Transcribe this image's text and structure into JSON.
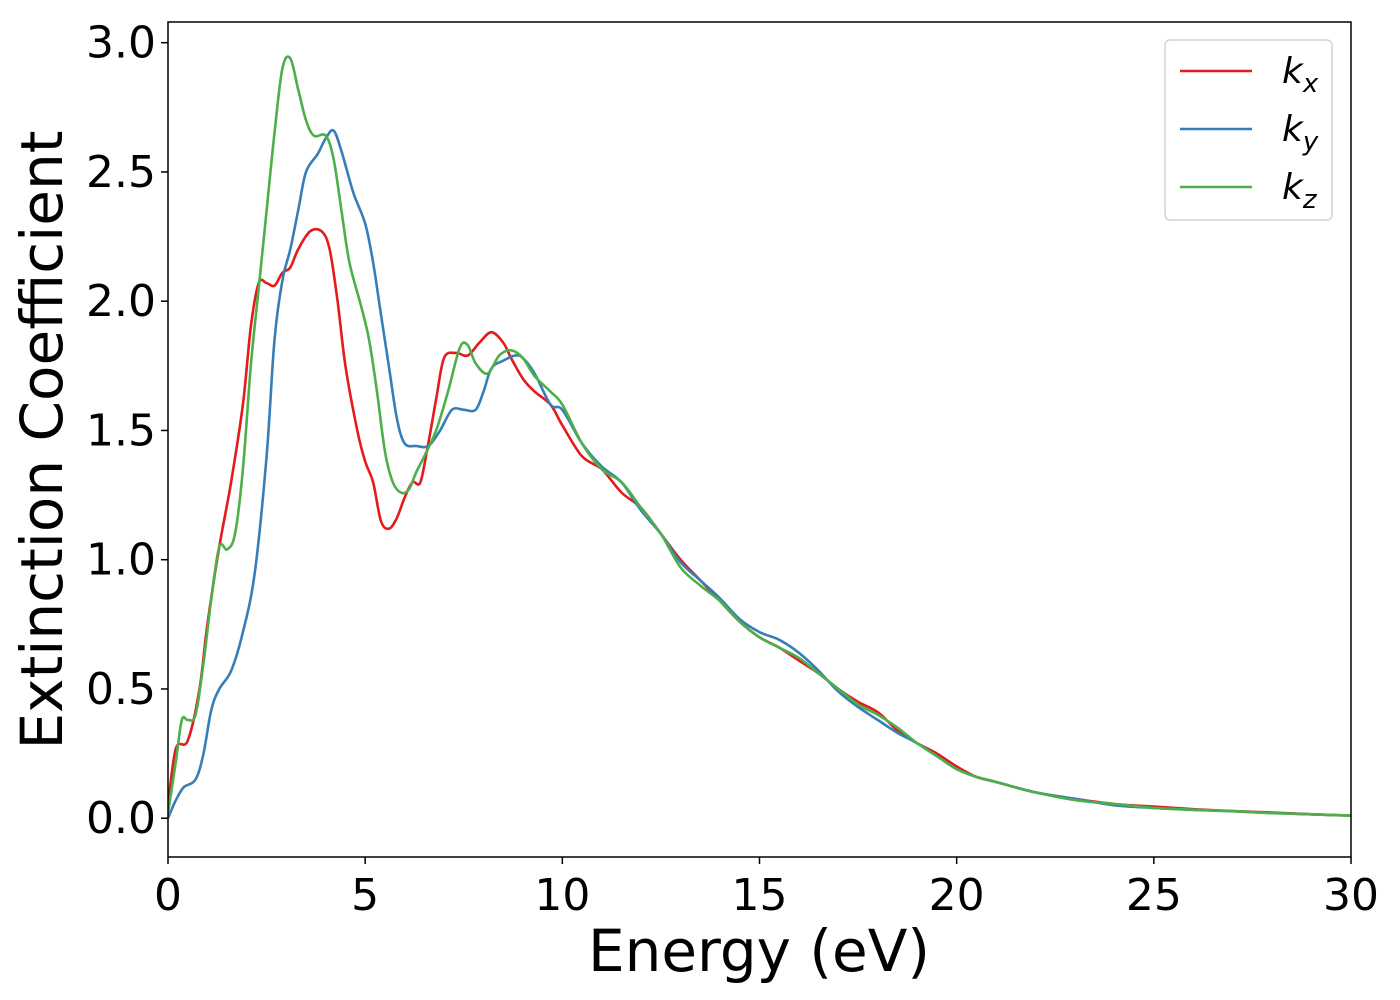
{
  "chart_data": {
    "type": "line",
    "title": "",
    "xlabel": "Energy (eV)",
    "ylabel": "Extinction Coefficient",
    "xlim": [
      0,
      30
    ],
    "ylim": [
      -0.15,
      3.08
    ],
    "xticks": [
      0,
      5,
      10,
      15,
      20,
      25,
      30
    ],
    "xtick_labels": [
      "0",
      "5",
      "10",
      "15",
      "20",
      "25",
      "30"
    ],
    "yticks": [
      0.0,
      0.5,
      1.0,
      1.5,
      2.0,
      2.5,
      3.0
    ],
    "ytick_labels": [
      "0.0",
      "0.5",
      "1.0",
      "1.5",
      "2.0",
      "2.5",
      "3.0"
    ],
    "grid": false,
    "legend_position": "top-right",
    "series": [
      {
        "name": "k_x",
        "legend_base": "k",
        "legend_sub": "x",
        "color": "#e41a1c",
        "x": [
          0,
          0.2,
          0.5,
          0.8,
          1.0,
          1.3,
          1.6,
          1.9,
          2.1,
          2.3,
          2.5,
          2.7,
          2.9,
          3.1,
          3.3,
          3.6,
          3.9,
          4.1,
          4.3,
          4.5,
          4.8,
          5.0,
          5.2,
          5.4,
          5.6,
          5.8,
          6.0,
          6.2,
          6.4,
          6.6,
          6.8,
          7.0,
          7.3,
          7.6,
          7.9,
          8.2,
          8.5,
          8.7,
          9.0,
          9.3,
          9.7,
          10.0,
          10.5,
          11.0,
          11.5,
          12.0,
          12.5,
          13.0,
          13.5,
          14.0,
          14.5,
          15.0,
          15.5,
          16.0,
          16.5,
          17.0,
          17.5,
          18.0,
          18.5,
          19.0,
          19.5,
          20.0,
          20.5,
          21.0,
          22.0,
          23.0,
          24.0,
          25.0,
          26.0,
          27.0,
          28.0,
          29.0,
          30.0
        ],
        "y": [
          0.05,
          0.27,
          0.3,
          0.5,
          0.75,
          1.05,
          1.3,
          1.6,
          1.9,
          2.07,
          2.07,
          2.06,
          2.11,
          2.13,
          2.2,
          2.27,
          2.27,
          2.2,
          2.0,
          1.75,
          1.5,
          1.38,
          1.3,
          1.15,
          1.12,
          1.16,
          1.24,
          1.3,
          1.3,
          1.45,
          1.62,
          1.78,
          1.8,
          1.79,
          1.84,
          1.88,
          1.84,
          1.78,
          1.7,
          1.65,
          1.6,
          1.52,
          1.4,
          1.35,
          1.26,
          1.2,
          1.1,
          1.0,
          0.92,
          0.84,
          0.76,
          0.7,
          0.66,
          0.61,
          0.56,
          0.5,
          0.45,
          0.41,
          0.34,
          0.29,
          0.25,
          0.2,
          0.16,
          0.14,
          0.1,
          0.075,
          0.055,
          0.045,
          0.035,
          0.028,
          0.022,
          0.015,
          0.01
        ]
      },
      {
        "name": "k_y",
        "legend_base": "k",
        "legend_sub": "y",
        "color": "#377eb8",
        "x": [
          0,
          0.2,
          0.4,
          0.7,
          0.9,
          1.1,
          1.3,
          1.6,
          1.9,
          2.2,
          2.5,
          2.7,
          2.9,
          3.1,
          3.3,
          3.5,
          3.8,
          4.0,
          4.2,
          4.4,
          4.7,
          5.0,
          5.2,
          5.4,
          5.6,
          5.8,
          6.0,
          6.3,
          6.6,
          6.9,
          7.2,
          7.5,
          7.8,
          8.0,
          8.2,
          8.5,
          8.8,
          9.0,
          9.3,
          9.7,
          10.0,
          10.5,
          11.0,
          11.5,
          12.0,
          12.5,
          13.0,
          13.5,
          14.0,
          14.5,
          15.0,
          15.5,
          16.0,
          16.5,
          17.0,
          17.5,
          18.0,
          18.5,
          19.0,
          19.5,
          20.0,
          20.5,
          21.0,
          22.0,
          23.0,
          24.0,
          25.0,
          26.0,
          27.0,
          28.0,
          29.0,
          30.0
        ],
        "y": [
          0.0,
          0.07,
          0.12,
          0.15,
          0.25,
          0.42,
          0.5,
          0.57,
          0.72,
          0.95,
          1.4,
          1.85,
          2.08,
          2.2,
          2.35,
          2.5,
          2.57,
          2.63,
          2.66,
          2.58,
          2.42,
          2.3,
          2.15,
          1.95,
          1.75,
          1.55,
          1.45,
          1.44,
          1.44,
          1.5,
          1.58,
          1.58,
          1.58,
          1.65,
          1.74,
          1.77,
          1.79,
          1.78,
          1.72,
          1.6,
          1.58,
          1.45,
          1.36,
          1.3,
          1.19,
          1.1,
          0.99,
          0.92,
          0.85,
          0.77,
          0.72,
          0.69,
          0.64,
          0.57,
          0.49,
          0.43,
          0.38,
          0.33,
          0.29,
          0.24,
          0.19,
          0.16,
          0.14,
          0.1,
          0.075,
          0.05,
          0.04,
          0.032,
          0.027,
          0.02,
          0.015,
          0.01
        ]
      },
      {
        "name": "k_z",
        "legend_base": "k",
        "legend_sub": "z",
        "color": "#4daf4a",
        "x": [
          0,
          0.2,
          0.35,
          0.5,
          0.7,
          0.9,
          1.1,
          1.3,
          1.5,
          1.7,
          1.9,
          2.1,
          2.3,
          2.5,
          2.7,
          2.9,
          3.1,
          3.3,
          3.5,
          3.7,
          4.0,
          4.2,
          4.4,
          4.6,
          4.9,
          5.1,
          5.3,
          5.5,
          5.7,
          5.9,
          6.1,
          6.3,
          6.5,
          6.8,
          7.1,
          7.4,
          7.6,
          7.8,
          8.1,
          8.4,
          8.7,
          9.0,
          9.3,
          9.7,
          10.0,
          10.5,
          11.0,
          11.5,
          12.0,
          12.5,
          13.0,
          13.5,
          14.0,
          14.5,
          15.0,
          15.5,
          16.0,
          16.5,
          17.0,
          17.5,
          18.0,
          18.5,
          19.0,
          19.5,
          20.0,
          20.5,
          21.0,
          22.0,
          23.0,
          24.0,
          25.0,
          26.0,
          27.0,
          28.0,
          29.0,
          30.0
        ],
        "y": [
          0.02,
          0.22,
          0.38,
          0.38,
          0.4,
          0.6,
          0.85,
          1.05,
          1.04,
          1.1,
          1.35,
          1.75,
          2.05,
          2.35,
          2.65,
          2.9,
          2.94,
          2.82,
          2.7,
          2.64,
          2.64,
          2.55,
          2.35,
          2.15,
          1.98,
          1.85,
          1.65,
          1.42,
          1.3,
          1.26,
          1.27,
          1.34,
          1.4,
          1.5,
          1.65,
          1.82,
          1.83,
          1.76,
          1.72,
          1.79,
          1.81,
          1.78,
          1.71,
          1.65,
          1.6,
          1.45,
          1.35,
          1.3,
          1.2,
          1.1,
          0.97,
          0.9,
          0.84,
          0.76,
          0.7,
          0.66,
          0.62,
          0.56,
          0.5,
          0.44,
          0.4,
          0.35,
          0.29,
          0.24,
          0.19,
          0.16,
          0.14,
          0.1,
          0.07,
          0.055,
          0.04,
          0.033,
          0.027,
          0.02,
          0.015,
          0.01
        ]
      }
    ]
  }
}
